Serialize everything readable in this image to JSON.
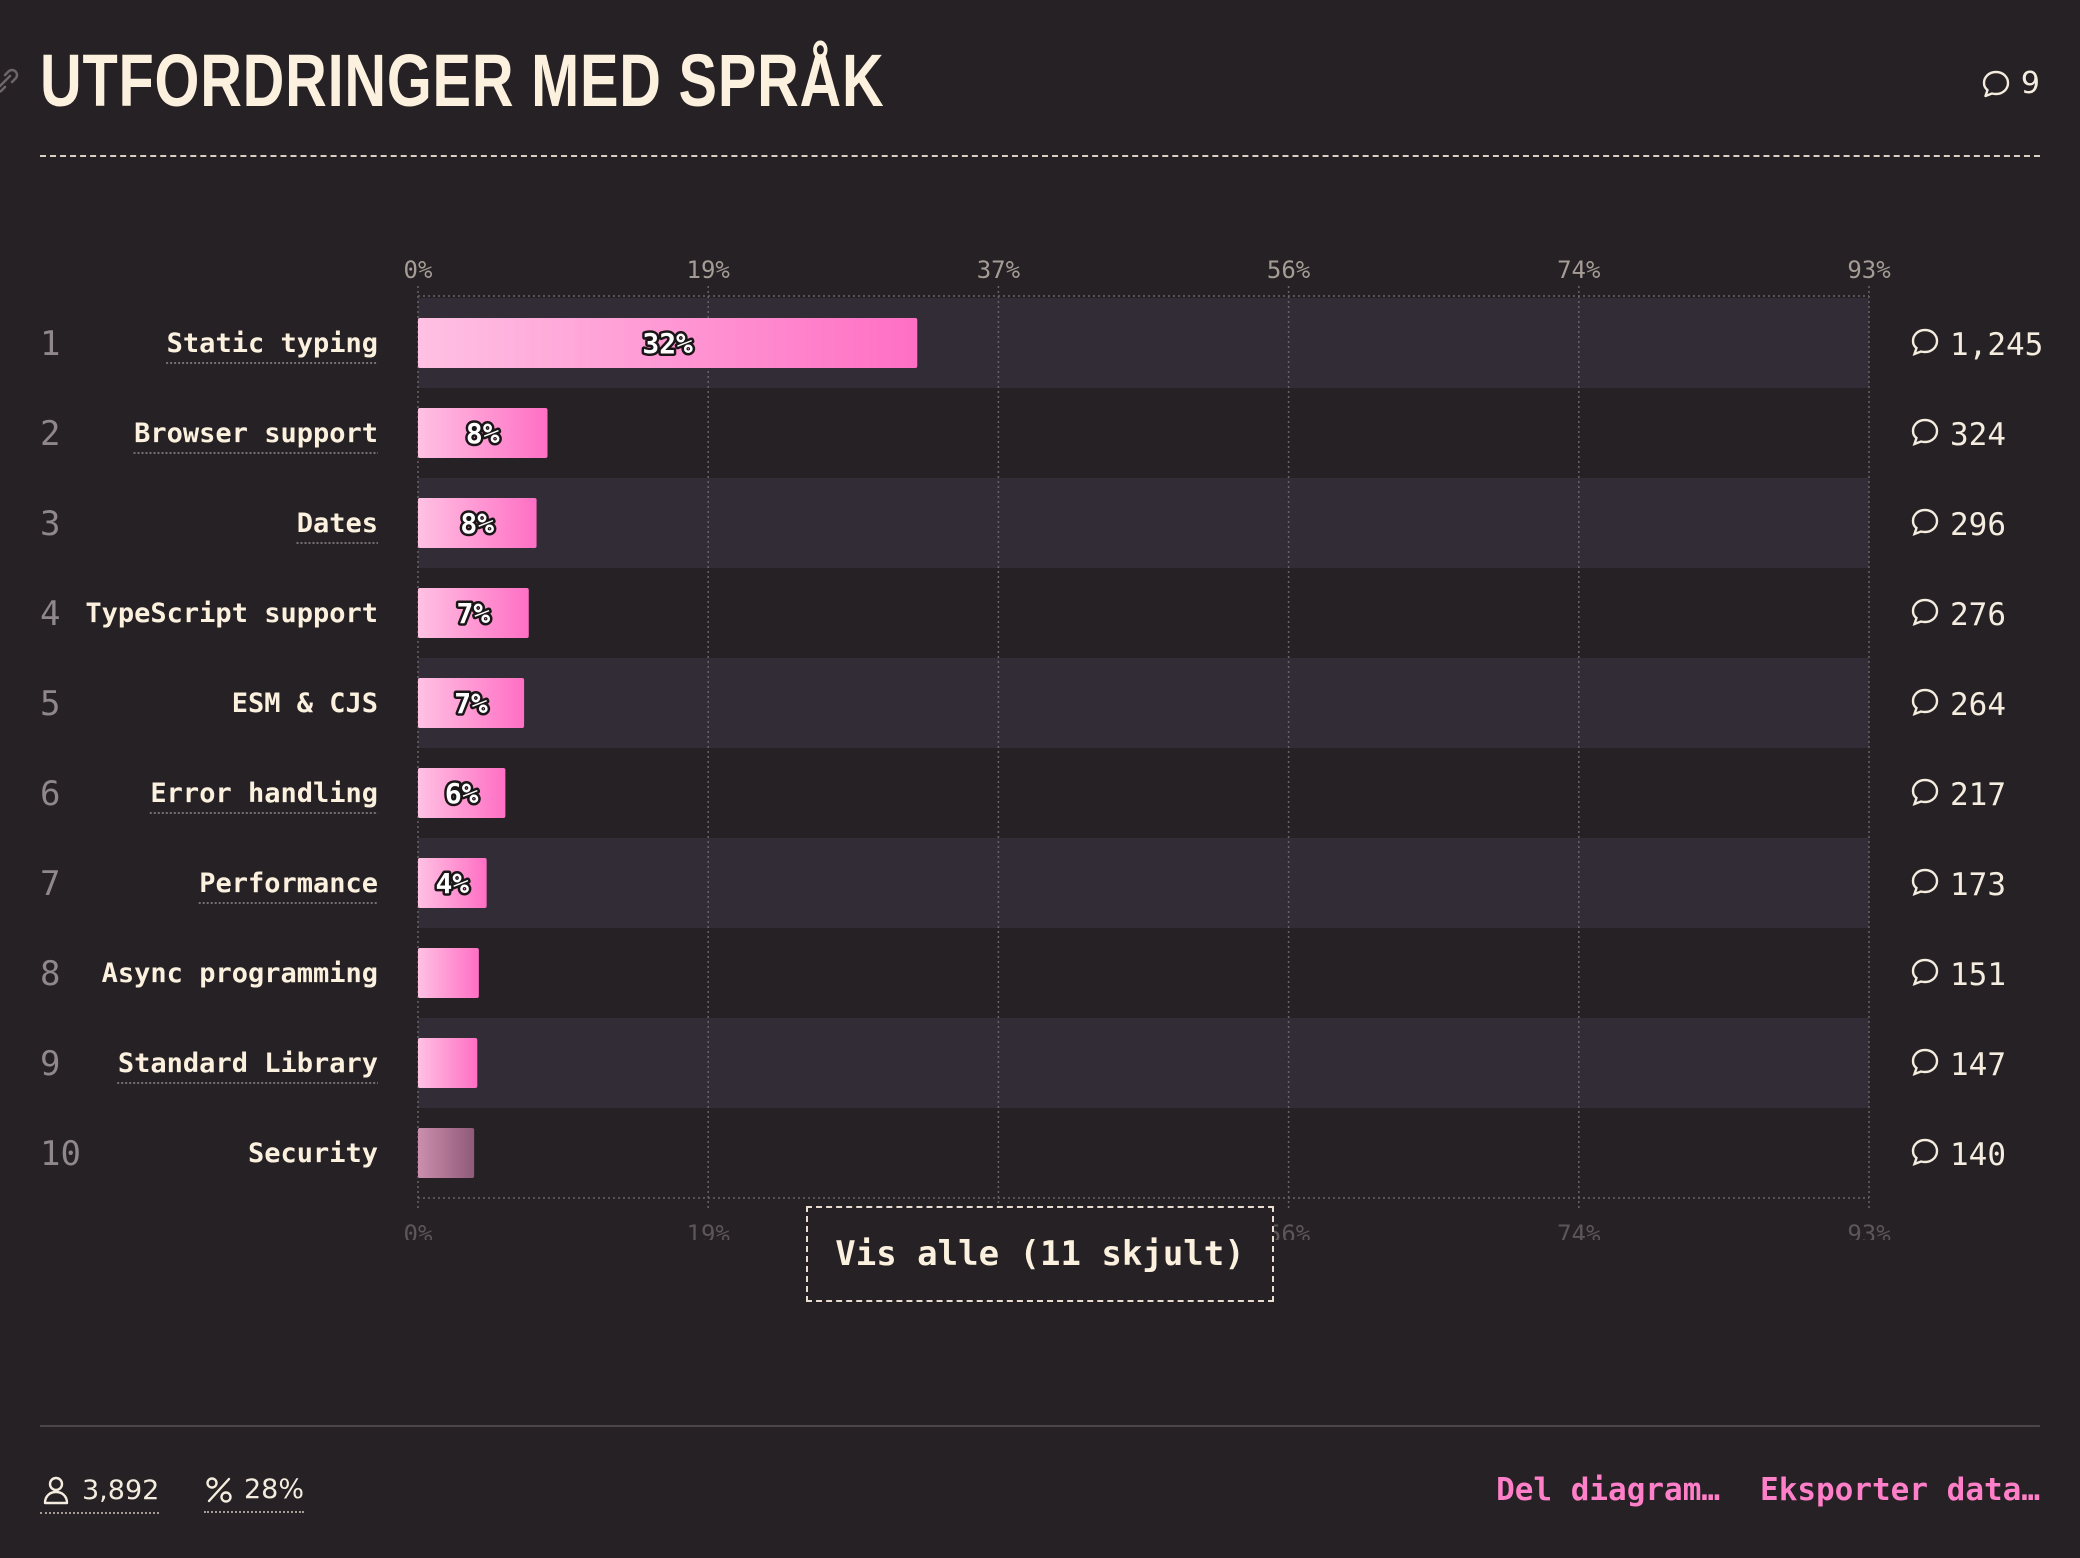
{
  "header": {
    "title": "UTFORDRINGER MED SPRÅK",
    "comments": "9"
  },
  "chart_data": {
    "type": "bar",
    "orientation": "horizontal",
    "title": "UTFORDRINGER MED SPRÅK",
    "xlabel": "",
    "ylabel": "",
    "xlim": [
      0,
      93
    ],
    "x_ticks": [
      "0%",
      "19%",
      "37%",
      "56%",
      "74%",
      "93%"
    ],
    "grid": true,
    "categories": [
      "Static typing",
      "Browser support",
      "Dates",
      "TypeScript support",
      "ESM & CJS",
      "Error handling",
      "Performance",
      "Async programming",
      "Standard Library",
      "Security"
    ],
    "ranks": [
      "1",
      "2",
      "3",
      "4",
      "5",
      "6",
      "7",
      "8",
      "9",
      "10"
    ],
    "values": [
      32,
      8.3,
      7.6,
      7.1,
      6.8,
      5.6,
      4.4,
      3.9,
      3.8,
      3.6
    ],
    "value_labels": [
      "32%",
      "8%",
      "8%",
      "7%",
      "7%",
      "6%",
      "4%",
      "",
      "",
      ""
    ],
    "comment_counts": [
      "1,245",
      "324",
      "296",
      "276",
      "264",
      "217",
      "173",
      "151",
      "147",
      "140"
    ],
    "colors": {
      "bar_light": "#ffc1e3",
      "bar_strong": "#ff6fc4",
      "bar_dimmed_light": "#cc8fae",
      "bar_dimmed_strong": "#8f5a78",
      "row_band": "#322c37"
    }
  },
  "show_all_button": "Vis alle (11 skjult)",
  "footer": {
    "respondents": "3,892",
    "percentage": "28%",
    "share_link": "Del diagram…",
    "export_link": "Eksporter data…"
  }
}
